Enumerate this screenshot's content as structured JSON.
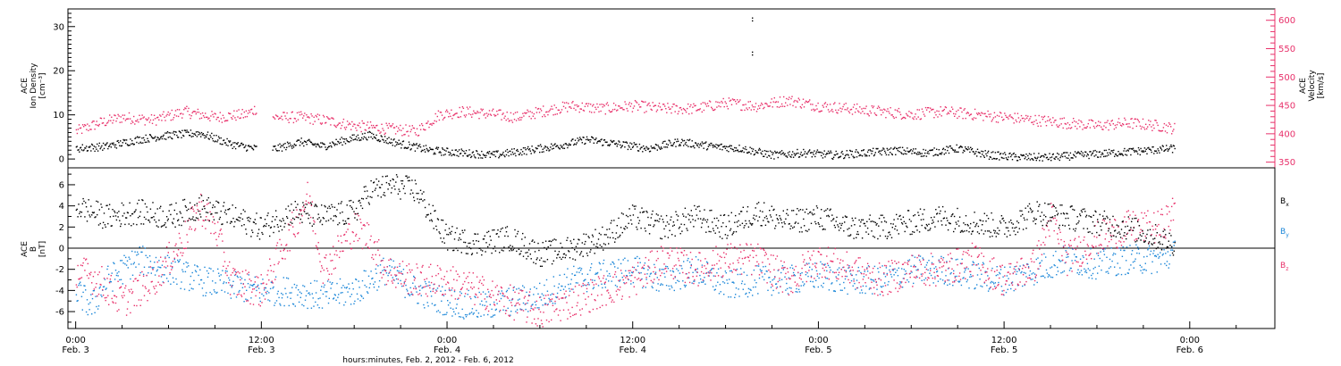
{
  "colors": {
    "black": "#000000",
    "pink": "#e8306a",
    "blue": "#1a86d8"
  },
  "chart_data": [
    {
      "type": "scatter",
      "panel": "top",
      "ylabel_left": [
        "ACE",
        "Ion Density",
        "[cm⁻³]"
      ],
      "ylabel_right": [
        "ACE",
        "Velocity",
        "[km/s]"
      ],
      "ylim_left": [
        -2,
        34
      ],
      "yticks_left": [
        0,
        10,
        20,
        30
      ],
      "ylim_right": [
        340,
        620
      ],
      "yticks_right": [
        350,
        400,
        450,
        500,
        550,
        600
      ],
      "x_unit": "hours since Feb. 3 00:00",
      "series": [
        {
          "axis": "left",
          "color": "black",
          "points": [
            [
              0,
              2.5
            ],
            [
              2,
              3
            ],
            [
              4,
              4.5
            ],
            [
              6,
              5.5
            ],
            [
              8,
              6
            ],
            [
              10,
              3.5
            ],
            [
              11.5,
              2.5
            ],
            [
              13,
              2.5
            ],
            [
              14.5,
              4
            ],
            [
              16,
              3
            ],
            [
              17.5,
              4.5
            ],
            [
              19,
              5.5
            ],
            [
              21,
              3.5
            ],
            [
              23,
              2
            ],
            [
              25,
              1.5
            ],
            [
              27,
              1
            ],
            [
              29,
              2
            ],
            [
              31,
              3
            ],
            [
              33,
              4.5
            ],
            [
              35,
              3.5
            ],
            [
              37,
              2.5
            ],
            [
              39,
              4
            ],
            [
              41,
              3
            ],
            [
              43,
              2.5
            ],
            [
              45,
              1
            ],
            [
              47,
              1.5
            ],
            [
              49,
              1
            ],
            [
              51,
              1.5
            ],
            [
              53,
              2
            ],
            [
              55,
              1.5
            ],
            [
              57,
              2.5
            ],
            [
              59,
              1
            ],
            [
              61,
              0.5
            ],
            [
              63,
              0.5
            ],
            [
              65,
              1
            ],
            [
              67,
              1.5
            ],
            [
              69,
              2
            ],
            [
              71,
              2.5
            ]
          ]
        },
        {
          "axis": "right",
          "color": "pink",
          "points": [
            [
              0,
              405
            ],
            [
              1.5,
              420
            ],
            [
              3,
              430
            ],
            [
              5,
              425
            ],
            [
              7,
              440
            ],
            [
              9,
              430
            ],
            [
              11,
              435
            ],
            [
              11.6,
              445
            ],
            [
              12.8,
              430
            ],
            [
              14.5,
              430
            ],
            [
              16,
              425
            ],
            [
              18,
              415
            ],
            [
              20,
              410
            ],
            [
              22,
              405
            ],
            [
              23.5,
              435
            ],
            [
              25,
              440
            ],
            [
              27,
              435
            ],
            [
              28.5,
              430
            ],
            [
              30,
              440
            ],
            [
              32,
              450
            ],
            [
              34,
              445
            ],
            [
              36,
              450
            ],
            [
              38,
              445
            ],
            [
              40,
              445
            ],
            [
              42,
              455
            ],
            [
              44,
              450
            ],
            [
              46,
              460
            ],
            [
              48,
              450
            ],
            [
              50,
              445
            ],
            [
              52,
              440
            ],
            [
              54,
              435
            ],
            [
              56,
              440
            ],
            [
              58,
              435
            ],
            [
              60,
              430
            ],
            [
              62,
              425
            ],
            [
              64,
              420
            ],
            [
              66,
              415
            ],
            [
              68,
              420
            ],
            [
              70,
              415
            ],
            [
              71,
              410
            ]
          ]
        },
        {
          "axis": "right",
          "color": "black",
          "points": [
            [
              43.7,
              605
            ],
            [
              43.7,
              600
            ],
            [
              43.7,
              545
            ],
            [
              43.7,
              540
            ]
          ]
        }
      ]
    },
    {
      "type": "scatter",
      "panel": "bottom",
      "ylabel": [
        "ACE",
        "B",
        "[nT]"
      ],
      "ylim": [
        -7.6,
        7.6
      ],
      "yticks": [
        -6,
        -4,
        -2,
        0,
        2,
        4,
        6
      ],
      "legend": {
        "placement": "right",
        "entries": [
          {
            "label": "B",
            "sub": "x",
            "color": "black"
          },
          {
            "label": "B",
            "sub": "y",
            "color": "blue"
          },
          {
            "label": "B",
            "sub": "z",
            "color": "pink"
          }
        ]
      },
      "series": [
        {
          "name": "Bx",
          "color": "black",
          "points": [
            [
              0,
              4
            ],
            [
              2,
              3
            ],
            [
              4,
              3.5
            ],
            [
              6,
              3
            ],
            [
              8,
              4
            ],
            [
              10,
              3
            ],
            [
              12,
              2
            ],
            [
              14,
              3.5
            ],
            [
              16,
              3
            ],
            [
              18,
              3.5
            ],
            [
              19,
              5.5
            ],
            [
              20.5,
              6
            ],
            [
              22,
              5.5
            ],
            [
              23,
              3
            ],
            [
              24,
              1
            ],
            [
              26,
              0.5
            ],
            [
              28,
              1
            ],
            [
              30,
              -0.5
            ],
            [
              32,
              0
            ],
            [
              34,
              1
            ],
            [
              36,
              3
            ],
            [
              38,
              2
            ],
            [
              40,
              3
            ],
            [
              42,
              2
            ],
            [
              44,
              3.5
            ],
            [
              46,
              2.5
            ],
            [
              48,
              3
            ],
            [
              50,
              2
            ],
            [
              52,
              2
            ],
            [
              54,
              2.5
            ],
            [
              56,
              3
            ],
            [
              58,
              2.5
            ],
            [
              60,
              2
            ],
            [
              62,
              3.5
            ],
            [
              64,
              3
            ],
            [
              66,
              2.5
            ],
            [
              68,
              2
            ],
            [
              70,
              1
            ],
            [
              71,
              0.5
            ]
          ]
        },
        {
          "name": "By",
          "color": "blue",
          "points": [
            [
              0,
              -4
            ],
            [
              1,
              -5.5
            ],
            [
              2,
              -3
            ],
            [
              4,
              -1
            ],
            [
              6,
              -2
            ],
            [
              8,
              -3
            ],
            [
              10,
              -3.5
            ],
            [
              12,
              -4
            ],
            [
              14,
              -4
            ],
            [
              16,
              -4.5
            ],
            [
              18,
              -4
            ],
            [
              20,
              -2
            ],
            [
              22,
              -4
            ],
            [
              24,
              -5
            ],
            [
              26,
              -5.5
            ],
            [
              28,
              -5
            ],
            [
              30,
              -4.5
            ],
            [
              32,
              -3
            ],
            [
              34,
              -2.5
            ],
            [
              36,
              -2
            ],
            [
              38,
              -3
            ],
            [
              40,
              -2
            ],
            [
              42,
              -3.5
            ],
            [
              44,
              -3
            ],
            [
              46,
              -3
            ],
            [
              48,
              -2.5
            ],
            [
              50,
              -3
            ],
            [
              52,
              -3
            ],
            [
              54,
              -2
            ],
            [
              56,
              -2
            ],
            [
              58,
              -2.5
            ],
            [
              60,
              -3
            ],
            [
              62,
              -2
            ],
            [
              64,
              -1
            ],
            [
              66,
              -1.5
            ],
            [
              68,
              -1
            ],
            [
              70,
              -1
            ],
            [
              71,
              -0.5
            ]
          ]
        },
        {
          "name": "Bz",
          "color": "pink",
          "points": [
            [
              0,
              -2
            ],
            [
              1.5,
              -3
            ],
            [
              3,
              -5
            ],
            [
              5,
              -3
            ],
            [
              7,
              1
            ],
            [
              8,
              4
            ],
            [
              9,
              2
            ],
            [
              10,
              -3
            ],
            [
              12,
              -4
            ],
            [
              14,
              2
            ],
            [
              15,
              5
            ],
            [
              16,
              -2
            ],
            [
              18,
              2
            ],
            [
              19,
              1
            ],
            [
              20,
              -2
            ],
            [
              22,
              -3
            ],
            [
              24,
              -3
            ],
            [
              26,
              -4
            ],
            [
              28,
              -5
            ],
            [
              30,
              -6
            ],
            [
              32,
              -5
            ],
            [
              34,
              -4
            ],
            [
              36,
              -3
            ],
            [
              38,
              -1
            ],
            [
              40,
              -2
            ],
            [
              42,
              -1
            ],
            [
              44,
              -1
            ],
            [
              46,
              -3
            ],
            [
              48,
              -1
            ],
            [
              50,
              -2
            ],
            [
              52,
              -3
            ],
            [
              54,
              -2
            ],
            [
              56,
              -2
            ],
            [
              58,
              -1
            ],
            [
              60,
              -3
            ],
            [
              62,
              -1.5
            ],
            [
              63,
              3
            ],
            [
              64,
              -1
            ],
            [
              66,
              1
            ],
            [
              68,
              2
            ],
            [
              70,
              2
            ],
            [
              71,
              3.5
            ]
          ]
        }
      ]
    }
  ],
  "x_axis": {
    "range_hours": [
      -0.5,
      77.5
    ],
    "ticks": [
      {
        "h": 0,
        "time": "0:00",
        "date": "Feb. 3"
      },
      {
        "h": 12,
        "time": "12:00",
        "date": "Feb. 3"
      },
      {
        "h": 24,
        "time": "0:00",
        "date": "Feb. 4"
      },
      {
        "h": 36,
        "time": "12:00",
        "date": "Feb. 4"
      },
      {
        "h": 48,
        "time": "0:00",
        "date": "Feb. 5"
      },
      {
        "h": 60,
        "time": "12:00",
        "date": "Feb. 5"
      },
      {
        "h": 72,
        "time": "0:00",
        "date": "Feb. 6"
      }
    ],
    "xlabel": "hours:minutes, Feb. 2, 2012 - Feb. 6, 2012"
  }
}
